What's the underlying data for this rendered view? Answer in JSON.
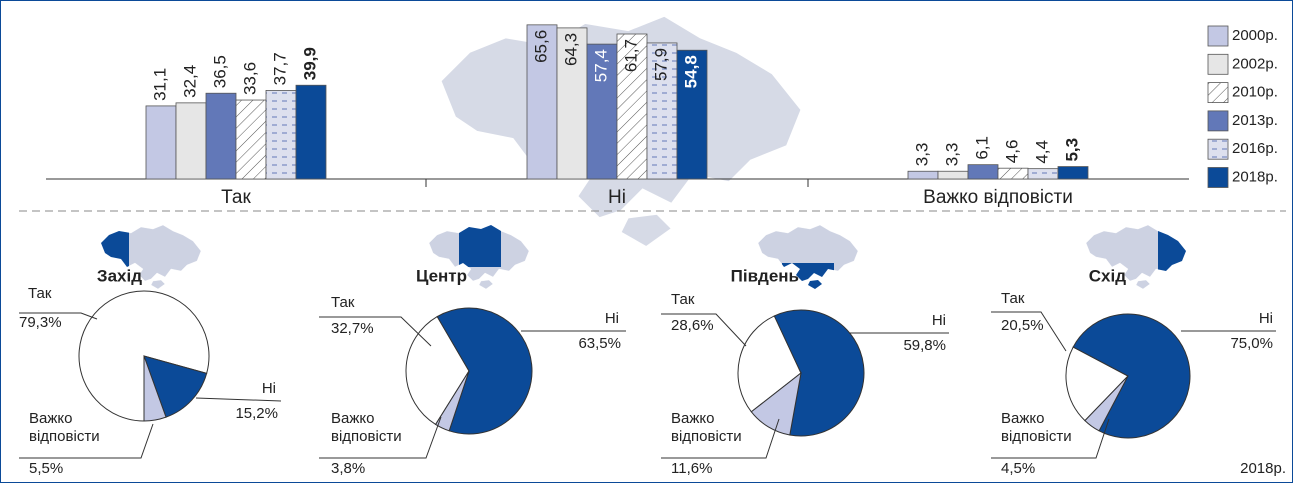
{
  "chart_data": [
    {
      "type": "bar",
      "categories": [
        "Так",
        "Ні",
        "Важко відповісти"
      ],
      "series": [
        {
          "name": "2000р.",
          "color": "#c3c8e4",
          "pattern": "solid",
          "bold": false,
          "values": [
            31.1,
            65.6,
            3.3
          ],
          "value_labels": [
            "31,1",
            "65,6",
            "3,3"
          ]
        },
        {
          "name": "2002р.",
          "color": "#e6e6e6",
          "pattern": "solid",
          "bold": false,
          "values": [
            32.4,
            64.3,
            3.3
          ],
          "value_labels": [
            "32,4",
            "64,3",
            "3,3"
          ]
        },
        {
          "name": "2013р.",
          "color": "#6278b8",
          "pattern": "solid",
          "bold": false,
          "values": [
            36.5,
            57.4,
            6.1
          ],
          "value_labels": [
            "36,5",
            "57,4",
            "6,1"
          ]
        },
        {
          "name": "2010р.",
          "color": "#ffffff",
          "pattern": "hatch",
          "bold": false,
          "values": [
            33.6,
            61.7,
            4.6
          ],
          "value_labels": [
            "33,6",
            "61,7",
            "4,6"
          ]
        },
        {
          "name": "2016р.",
          "color": "#c3c8e4",
          "pattern": "dashes",
          "bold": false,
          "values": [
            37.7,
            57.9,
            4.4
          ],
          "value_labels": [
            "37,7",
            "57,9",
            "4,4"
          ]
        },
        {
          "name": "2018р.",
          "color": "#0b4a98",
          "pattern": "solid",
          "bold": true,
          "values": [
            39.9,
            54.8,
            5.3
          ],
          "value_labels": [
            "39,9",
            "54,8",
            "5,3"
          ]
        }
      ],
      "legend_order": [
        0,
        1,
        3,
        2,
        4,
        5
      ]
    },
    {
      "type": "pie",
      "title": "Захід",
      "categories": [
        "Так",
        "Ні",
        "Важко відповісти"
      ],
      "colors": [
        "#ffffff",
        "#0b4a98",
        "#c3c8e4"
      ],
      "values": [
        79.3,
        15.2,
        5.5
      ],
      "value_labels": [
        "79,3%",
        "15,2%",
        "5,5%"
      ]
    },
    {
      "type": "pie",
      "title": "Центр",
      "categories": [
        "Так",
        "Ні",
        "Важко відповісти"
      ],
      "colors": [
        "#ffffff",
        "#0b4a98",
        "#c3c8e4"
      ],
      "values": [
        32.7,
        63.5,
        3.8
      ],
      "value_labels": [
        "32,7%",
        "63,5%",
        "3,8%"
      ]
    },
    {
      "type": "pie",
      "title": "Південь",
      "categories": [
        "Так",
        "Ні",
        "Важко відповісти"
      ],
      "colors": [
        "#ffffff",
        "#0b4a98",
        "#c3c8e4"
      ],
      "values": [
        28.6,
        59.8,
        11.6
      ],
      "value_labels": [
        "28,6%",
        "59,8%",
        "11,6%"
      ]
    },
    {
      "type": "pie",
      "title": "Схід",
      "categories": [
        "Так",
        "Ні",
        "Важко відповісти"
      ],
      "colors": [
        "#ffffff",
        "#0b4a98",
        "#c3c8e4"
      ],
      "values": [
        20.5,
        75.0,
        4.5
      ],
      "value_labels": [
        "20,5%",
        "75,0%",
        "4,5%"
      ]
    }
  ],
  "note": "2018р."
}
